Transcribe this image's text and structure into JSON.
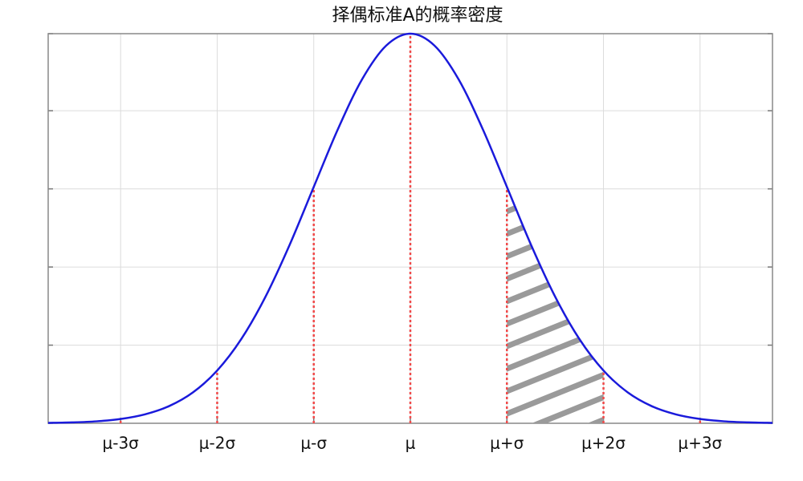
{
  "chart_data": {
    "type": "line",
    "title": "择偶标准A的概率密度",
    "x": [
      -3.75,
      -3.5,
      -3.25,
      -3,
      -2.75,
      -2.5,
      -2.25,
      -2,
      -1.75,
      -1.5,
      -1.25,
      -1,
      -0.75,
      -0.5,
      -0.25,
      0,
      0.25,
      0.5,
      0.75,
      1,
      1.25,
      1.5,
      1.75,
      2,
      2.25,
      2.5,
      2.75,
      3,
      3.25,
      3.5,
      3.75
    ],
    "series": [
      {
        "color": "#1a1adb",
        "values": [
          0.0004,
          0.0009,
          0.002,
          0.0044,
          0.0091,
          0.0175,
          0.0317,
          0.054,
          0.0863,
          0.1295,
          0.1826,
          0.242,
          0.3011,
          0.3521,
          0.3867,
          0.3989,
          0.3867,
          0.3521,
          0.3011,
          0.242,
          0.1826,
          0.1295,
          0.0863,
          0.054,
          0.0317,
          0.0175,
          0.0091,
          0.0044,
          0.002,
          0.0009,
          0.0004
        ]
      }
    ],
    "reference_lines": {
      "color": "#f04a4a",
      "x": [
        -3,
        -2,
        -1,
        0,
        1,
        2,
        3
      ],
      "values": [
        0.0044,
        0.054,
        0.242,
        0.3989,
        0.242,
        0.054,
        0.0044
      ]
    },
    "shaded": {
      "color": "#9a9a9a",
      "x": [
        1,
        2
      ]
    },
    "xlim": [
      -3.75,
      3.75
    ],
    "xticks": [
      {
        "value": -3,
        "label": "μ-3σ"
      },
      {
        "value": -2,
        "label": "μ-2σ"
      },
      {
        "value": -1,
        "label": "μ-σ"
      },
      {
        "value": 0,
        "label": "μ"
      },
      {
        "value": 1,
        "label": "μ+σ"
      },
      {
        "value": 2,
        "label": "μ+2σ"
      },
      {
        "value": 3,
        "label": "μ+3σ"
      }
    ],
    "ylim": [
      0,
      0.3989
    ],
    "yticks": [
      0,
      0.08,
      0.16,
      0.24,
      0.32,
      0.3989
    ],
    "grid": true
  }
}
